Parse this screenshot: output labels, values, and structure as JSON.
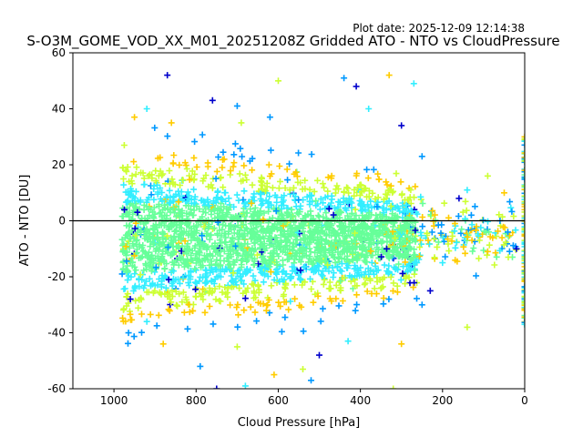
{
  "plot_date": "Plot date: 2025-12-09 12:14:38",
  "chart_data": {
    "type": "scatter",
    "title": "S-O3M_GOME_VOD_XX_M01_20251208Z Gridded ATO - NTO vs CloudPressure",
    "xlabel": "Cloud Pressure [hPa]",
    "ylabel": "ATO - NTO [DU]",
    "xlim": [
      1100,
      0
    ],
    "ylim": [
      -60,
      60
    ],
    "x_inverted": true,
    "x_ticks": [
      1000,
      800,
      600,
      400,
      200,
      0
    ],
    "y_ticks": [
      -60,
      -40,
      -20,
      0,
      20,
      40,
      60
    ],
    "reference_line_y": 0,
    "marker": "+",
    "grid": false,
    "colors_low_to_high_density": [
      "#0000cc",
      "#0099ff",
      "#33eeff",
      "#66ff99",
      "#ccff33",
      "#ffcc00"
    ],
    "point_cloud": {
      "x_range": [
        980,
        0
      ],
      "y_core_range": [
        -40,
        30
      ],
      "y_extreme_range": [
        -60,
        52
      ],
      "densest_region": {
        "x": [
          950,
          500
        ],
        "y": [
          -30,
          20
        ]
      },
      "column_at_x": 0,
      "column_y_range": [
        -38,
        30
      ]
    },
    "sample_points": [
      {
        "x": 870,
        "y": 52
      },
      {
        "x": 440,
        "y": 51
      },
      {
        "x": 600,
        "y": 50
      },
      {
        "x": 330,
        "y": 52
      },
      {
        "x": 270,
        "y": 49
      },
      {
        "x": 410,
        "y": 48
      },
      {
        "x": 620,
        "y": 37
      },
      {
        "x": 690,
        "y": 35
      },
      {
        "x": 860,
        "y": 35
      },
      {
        "x": 380,
        "y": 40
      },
      {
        "x": 300,
        "y": 34
      },
      {
        "x": 250,
        "y": 23
      },
      {
        "x": 90,
        "y": 16
      },
      {
        "x": 50,
        "y": 10
      },
      {
        "x": 140,
        "y": 11
      },
      {
        "x": 160,
        "y": 8
      },
      {
        "x": 130,
        "y": 2
      },
      {
        "x": 110,
        "y": -7
      },
      {
        "x": 90,
        "y": -11
      },
      {
        "x": 200,
        "y": -15
      },
      {
        "x": 230,
        "y": -25
      },
      {
        "x": 250,
        "y": -30
      },
      {
        "x": 140,
        "y": -38
      },
      {
        "x": 300,
        "y": -44
      },
      {
        "x": 430,
        "y": -43
      },
      {
        "x": 500,
        "y": -48
      },
      {
        "x": 520,
        "y": -57
      },
      {
        "x": 540,
        "y": -53
      },
      {
        "x": 610,
        "y": -55
      },
      {
        "x": 680,
        "y": -59
      },
      {
        "x": 750,
        "y": -60
      },
      {
        "x": 790,
        "y": -52
      },
      {
        "x": 700,
        "y": -45
      },
      {
        "x": 880,
        "y": -44
      },
      {
        "x": 920,
        "y": -36
      },
      {
        "x": 960,
        "y": -28
      },
      {
        "x": 980,
        "y": -19
      },
      {
        "x": 975,
        "y": 27
      },
      {
        "x": 950,
        "y": 37
      },
      {
        "x": 920,
        "y": 40
      },
      {
        "x": 760,
        "y": 43
      },
      {
        "x": 700,
        "y": 41
      },
      {
        "x": 320,
        "y": -60
      },
      {
        "x": 0,
        "y": 30
      },
      {
        "x": 0,
        "y": -37
      },
      {
        "x": 20,
        "y": -10
      },
      {
        "x": 60,
        "y": 0
      },
      {
        "x": 40,
        "y": -13
      }
    ]
  }
}
